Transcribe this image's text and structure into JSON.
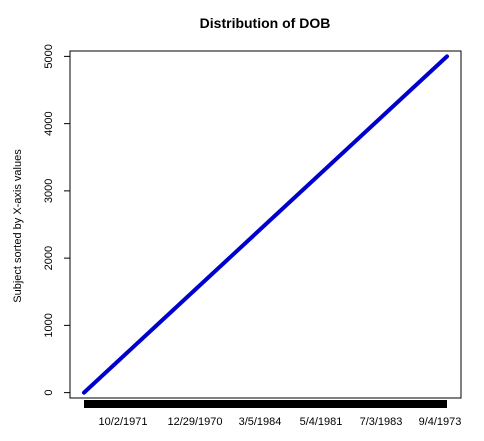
{
  "chart_data": {
    "type": "line",
    "title": "Distribution of DOB",
    "xlabel": "",
    "ylabel": "Subject sorted by X-axis values",
    "x_tick_labels": [
      "10/2/1971",
      "12/29/1970",
      "3/5/1984",
      "5/4/1981",
      "7/3/1983",
      "9/4/1973"
    ],
    "y_ticks": [
      0,
      1000,
      2000,
      3000,
      4000,
      5000
    ],
    "ylim": [
      -80,
      5080
    ],
    "xlim": [
      0,
      5000
    ],
    "series": [
      {
        "x": [
          0,
          1000,
          2000,
          3000,
          4000,
          5000
        ],
        "values": [
          0,
          1000,
          2000,
          3000,
          4000,
          5000
        ]
      }
    ],
    "line_color": "#0000cc",
    "grid": false,
    "legend": "none"
  }
}
